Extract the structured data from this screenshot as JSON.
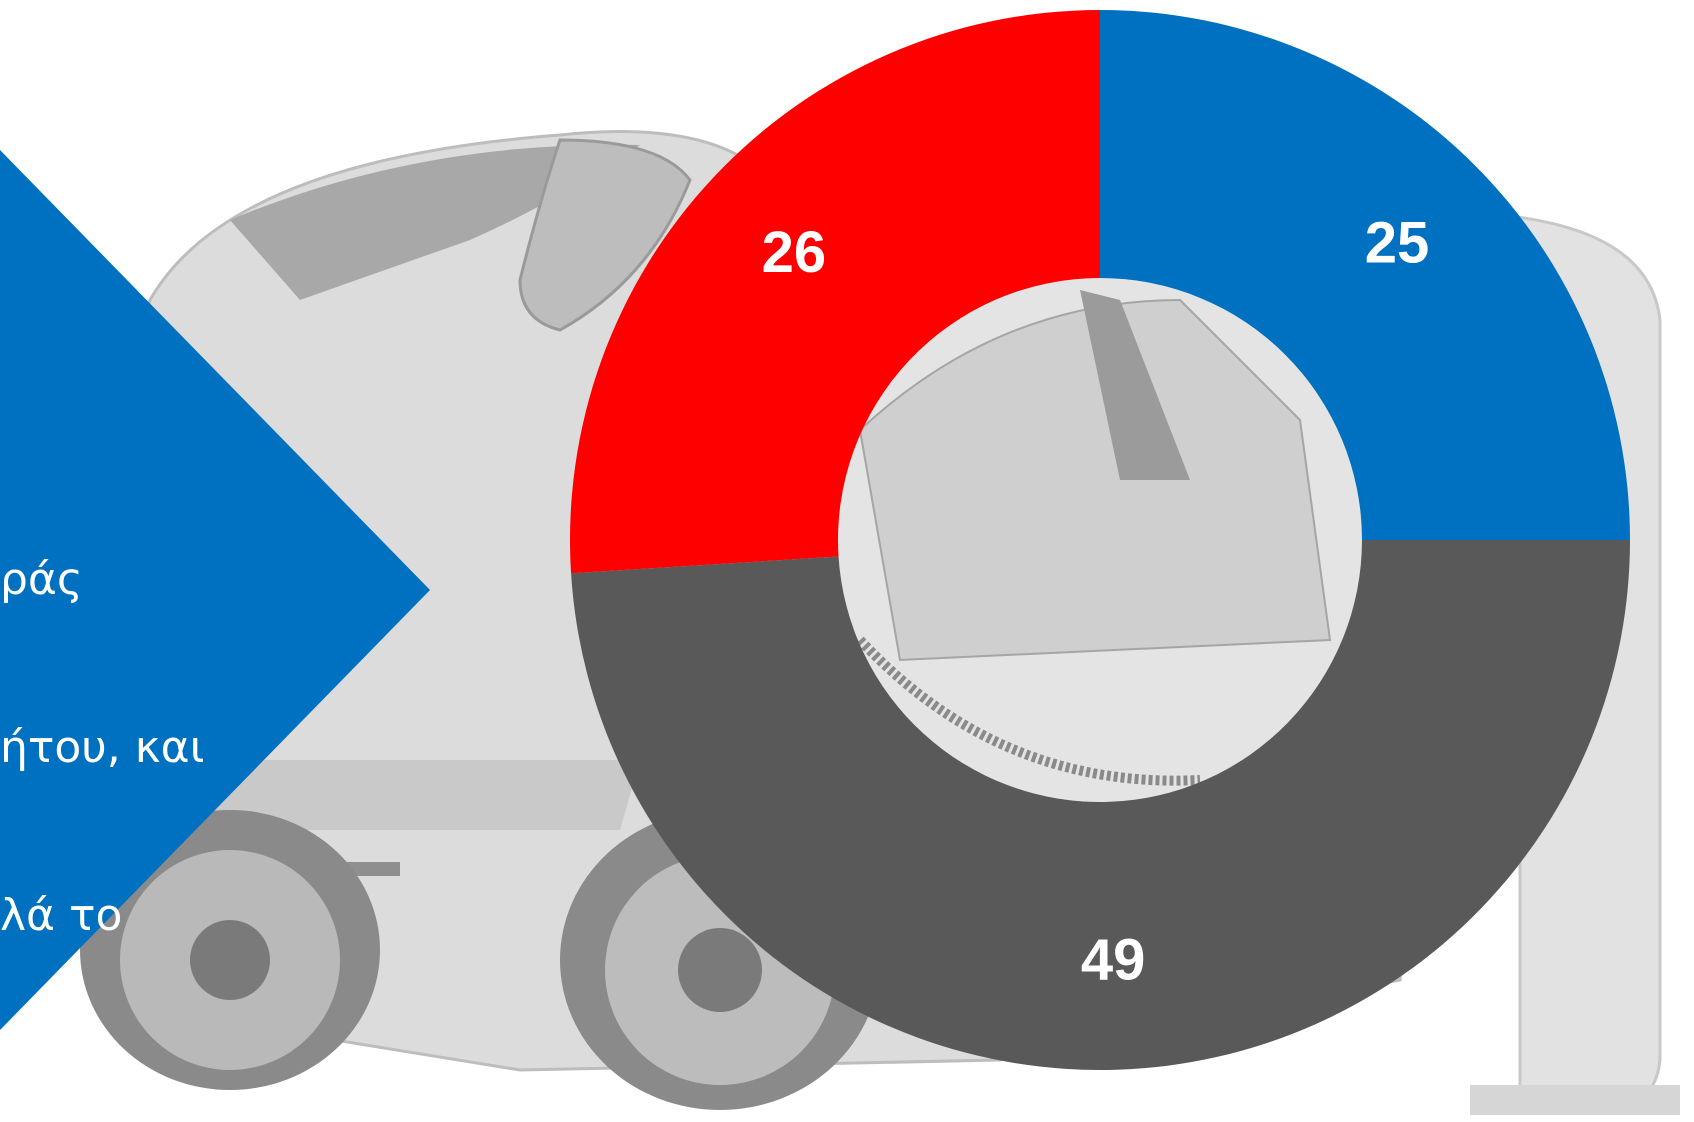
{
  "overlay_text": {
    "line1": "ράς",
    "line2": "ήτου, και",
    "line3": "λά το"
  },
  "colors": {
    "accent_blue": "#0070C0",
    "red": "#FF0000",
    "dark_gray": "#595959"
  },
  "chart_data": {
    "type": "pie",
    "donut": true,
    "start_angle_deg": 0,
    "direction": "clockwise",
    "slices": [
      {
        "value": 25,
        "label": "25",
        "color": "#0070C0"
      },
      {
        "value": 49,
        "label": "49",
        "color": "#595959"
      },
      {
        "value": 26,
        "label": "26",
        "color": "#FF0000"
      }
    ],
    "title": "",
    "legend": "none"
  }
}
